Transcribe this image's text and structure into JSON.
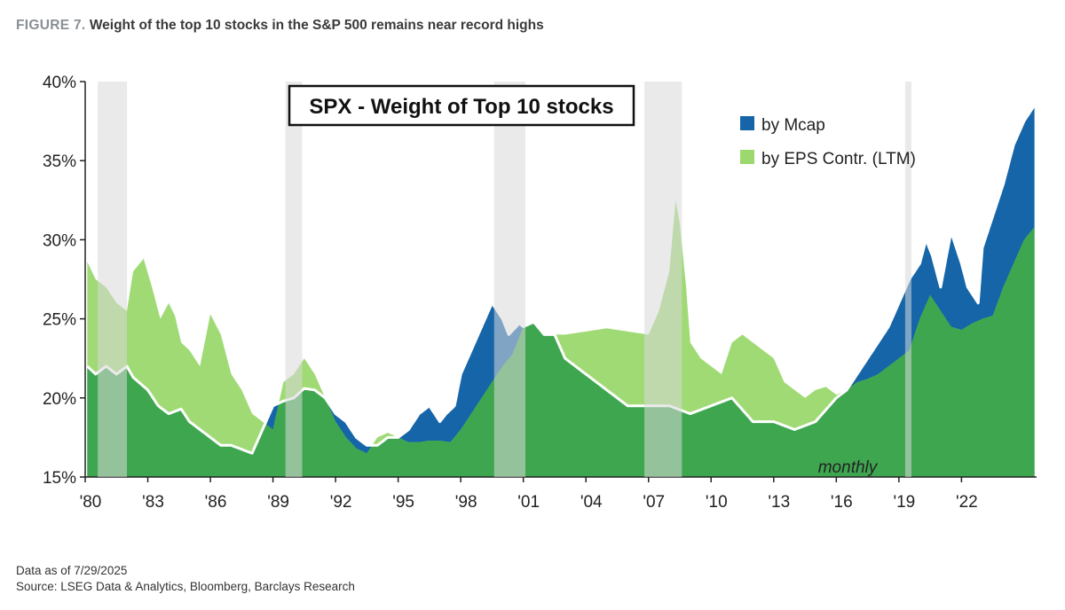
{
  "figure": {
    "prefix": "FIGURE 7.",
    "title": "Weight of the top 10 stocks in the S&P 500 remains near record highs"
  },
  "footnotes": {
    "as_of": "Data as of 7/29/2025",
    "source": "Source: LSEG Data & Analytics, Bloomberg, Barclays Research"
  },
  "colors": {
    "mcap": "#1565a8",
    "eps": "#9bd86e",
    "core": "#3fa650",
    "recession": "#d9d9d9",
    "separator": "#ffffff"
  },
  "chart_data": {
    "type": "area",
    "title": "SPX - Weight of Top 10 stocks",
    "annotation": "monthly",
    "x_unit": "year",
    "xlim": [
      1980,
      2025.6
    ],
    "ylim": [
      15,
      40
    ],
    "y_ticks": [
      15,
      20,
      25,
      30,
      35,
      40
    ],
    "y_tick_labels": [
      "15%",
      "20%",
      "25%",
      "30%",
      "35%",
      "40%"
    ],
    "x_ticks": [
      1980,
      1983,
      1986,
      1989,
      1992,
      1995,
      1998,
      2001,
      2004,
      2007,
      2010,
      2013,
      2016,
      2019,
      2022
    ],
    "x_tick_labels": [
      "'80",
      "'83",
      "'86",
      "'89",
      "'92",
      "'95",
      "'98",
      "'01",
      "'04",
      "'07",
      "'10",
      "'13",
      "'16",
      "'19",
      "'22"
    ],
    "legend_position": "top-right",
    "grid": false,
    "recessions": [
      [
        1980.6,
        1982.0
      ],
      [
        1989.6,
        1990.4
      ],
      [
        1999.6,
        2001.1
      ],
      [
        2006.8,
        2008.6
      ],
      [
        2019.3,
        2019.6
      ]
    ],
    "series": [
      {
        "name": "by Mcap",
        "x": [
          1980.1,
          1980.5,
          1981,
          1981.5,
          1982,
          1982.3,
          1983,
          1983.5,
          1984,
          1984.6,
          1985,
          1986,
          1986.5,
          1987,
          1988,
          1989,
          1989.5,
          1990,
          1990.5,
          1991,
          1991.5,
          1992,
          1992.5,
          1993,
          1993.5,
          1994,
          1994.5,
          1995,
          1995.5,
          1996,
          1996.5,
          1997,
          1997.3,
          1997.7,
          1998,
          1998.5,
          1999,
          1999.5,
          2000,
          2000.3,
          2000.8,
          2001,
          2001.5,
          2002,
          2002.5,
          2003,
          2004,
          2005,
          2006,
          2007,
          2008,
          2009,
          2010,
          2011,
          2012,
          2013,
          2014,
          2015,
          2016,
          2016.5,
          2017,
          2017.5,
          2018,
          2018.5,
          2019,
          2019.5,
          2020,
          2020.3,
          2020.6,
          2021,
          2021.5,
          2022,
          2022.3,
          2022.8,
          2023,
          2023.5,
          2024,
          2024.5,
          2025,
          2025.5
        ],
        "values": [
          22.0,
          21.5,
          22.0,
          21.5,
          22.0,
          21.3,
          20.5,
          19.5,
          19.0,
          19.3,
          18.5,
          17.5,
          17.0,
          17.0,
          16.5,
          19.5,
          19.8,
          20.0,
          20.6,
          20.5,
          20.0,
          19.0,
          18.5,
          17.5,
          17.0,
          17.0,
          17.5,
          17.5,
          18.0,
          19.0,
          19.5,
          18.5,
          19.0,
          19.5,
          21.5,
          23.0,
          24.5,
          26.0,
          25.0,
          24.0,
          24.7,
          24.5,
          24.8,
          24.0,
          24.0,
          22.5,
          21.5,
          20.5,
          19.5,
          19.5,
          19.5,
          19.0,
          19.5,
          20.0,
          18.5,
          18.5,
          18.0,
          18.5,
          20.0,
          20.5,
          21.5,
          22.5,
          23.5,
          24.5,
          26.0,
          27.5,
          28.5,
          30.0,
          29.0,
          27.0,
          30.5,
          28.5,
          27.0,
          26.0,
          29.5,
          31.5,
          33.5,
          36.0,
          37.5,
          38.5
        ]
      },
      {
        "name": "by EPS Contr. (LTM)",
        "x": [
          1980.1,
          1980.5,
          1981,
          1981.5,
          1982,
          1982.3,
          1982.8,
          1983.2,
          1983.6,
          1984,
          1984.3,
          1984.6,
          1985,
          1985.5,
          1986,
          1986.5,
          1987,
          1987.5,
          1988,
          1988.5,
          1989,
          1989.5,
          1990,
          1990.5,
          1991,
          1991.5,
          1992,
          1992.5,
          1993,
          1993.5,
          1994,
          1994.5,
          1995,
          1995.5,
          1996,
          1996.5,
          1997,
          1997.5,
          1998,
          1998.5,
          1999,
          1999.5,
          2000,
          2000.5,
          2001,
          2001.5,
          2002,
          2002.5,
          2003,
          2004,
          2005,
          2006,
          2007,
          2007.5,
          2008,
          2008.3,
          2008.5,
          2008.8,
          2009,
          2009.5,
          2010,
          2010.5,
          2011,
          2011.5,
          2012,
          2012.5,
          2013,
          2013.5,
          2014,
          2014.5,
          2015,
          2015.5,
          2016,
          2016.5,
          2017,
          2017.5,
          2018,
          2018.5,
          2019,
          2019.5,
          2020,
          2020.5,
          2021,
          2021.5,
          2022,
          2022.5,
          2023,
          2023.5,
          2024,
          2024.5,
          2025,
          2025.5
        ],
        "values": [
          28.6,
          27.5,
          27.0,
          26.0,
          25.5,
          28.0,
          28.8,
          27.0,
          25.0,
          26.0,
          25.2,
          23.5,
          23.0,
          22.0,
          25.3,
          24.0,
          21.5,
          20.5,
          19.0,
          18.5,
          18.0,
          21.0,
          21.5,
          22.5,
          21.5,
          20.0,
          18.5,
          17.5,
          16.8,
          16.5,
          17.5,
          17.8,
          17.5,
          17.2,
          17.2,
          17.3,
          17.3,
          17.2,
          18.0,
          19.0,
          20.0,
          21.0,
          22.0,
          22.8,
          24.5,
          24.8,
          24.0,
          24.0,
          24.0,
          24.2,
          24.4,
          24.2,
          24.0,
          25.5,
          28.0,
          32.5,
          31.0,
          27.0,
          23.5,
          22.5,
          22.0,
          21.5,
          23.5,
          24.0,
          23.5,
          23.0,
          22.5,
          21.0,
          20.5,
          20.0,
          20.5,
          20.7,
          20.2,
          20.5,
          21.0,
          21.2,
          21.5,
          22.0,
          22.5,
          23.0,
          25.0,
          26.5,
          25.5,
          24.5,
          24.3,
          24.7,
          25.0,
          25.2,
          27.0,
          28.5,
          30.0,
          30.8
        ]
      }
    ]
  }
}
